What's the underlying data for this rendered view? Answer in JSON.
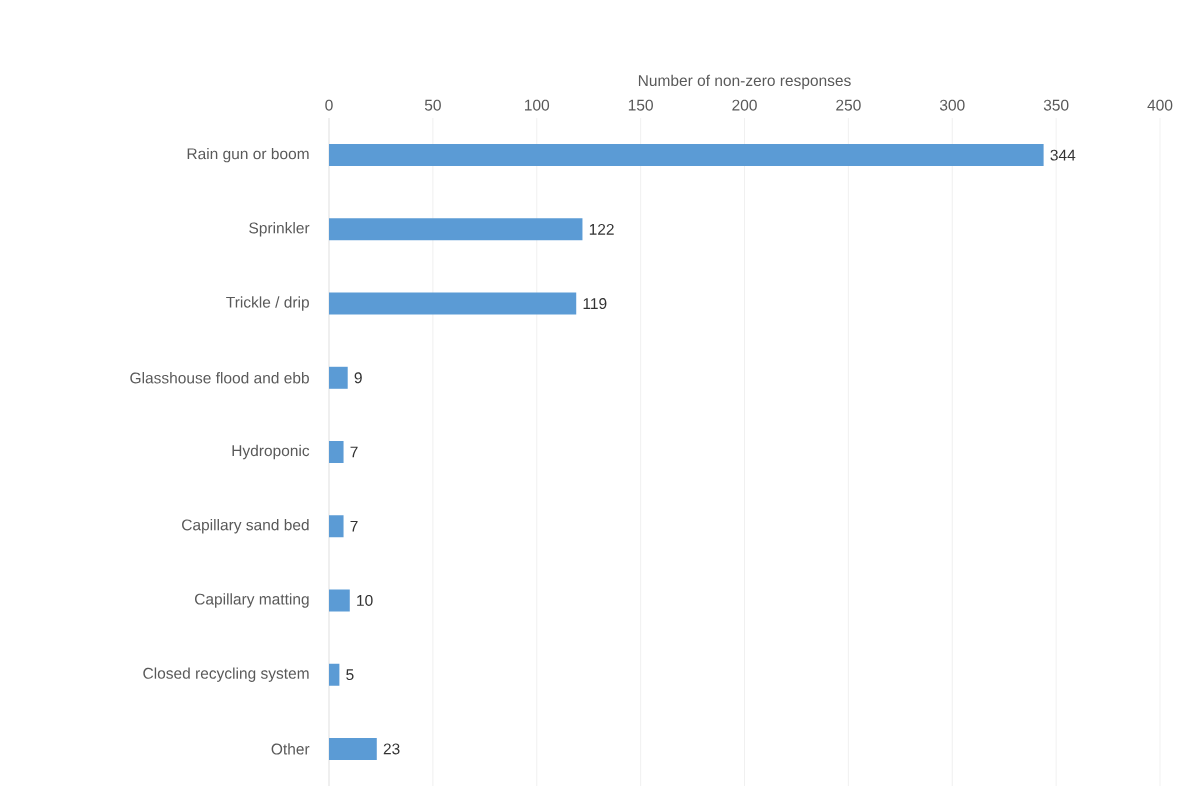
{
  "chart_data": {
    "type": "bar",
    "orientation": "horizontal",
    "xlabel": "Number of non-zero responses",
    "categories": [
      "Rain gun or boom",
      "Sprinkler",
      "Trickle / drip",
      "Glasshouse flood and ebb",
      "Hydroponic",
      "Capillary sand bed",
      "Capillary matting",
      "Closed recycling system",
      "Other"
    ],
    "values": [
      344,
      122,
      119,
      9,
      7,
      7,
      10,
      5,
      23
    ],
    "color": "#5b9bd5",
    "xlim": [
      0,
      400
    ],
    "xticks": [
      0,
      50,
      100,
      150,
      200,
      250,
      300,
      350,
      400
    ],
    "grid": "x",
    "data_labels": true
  }
}
